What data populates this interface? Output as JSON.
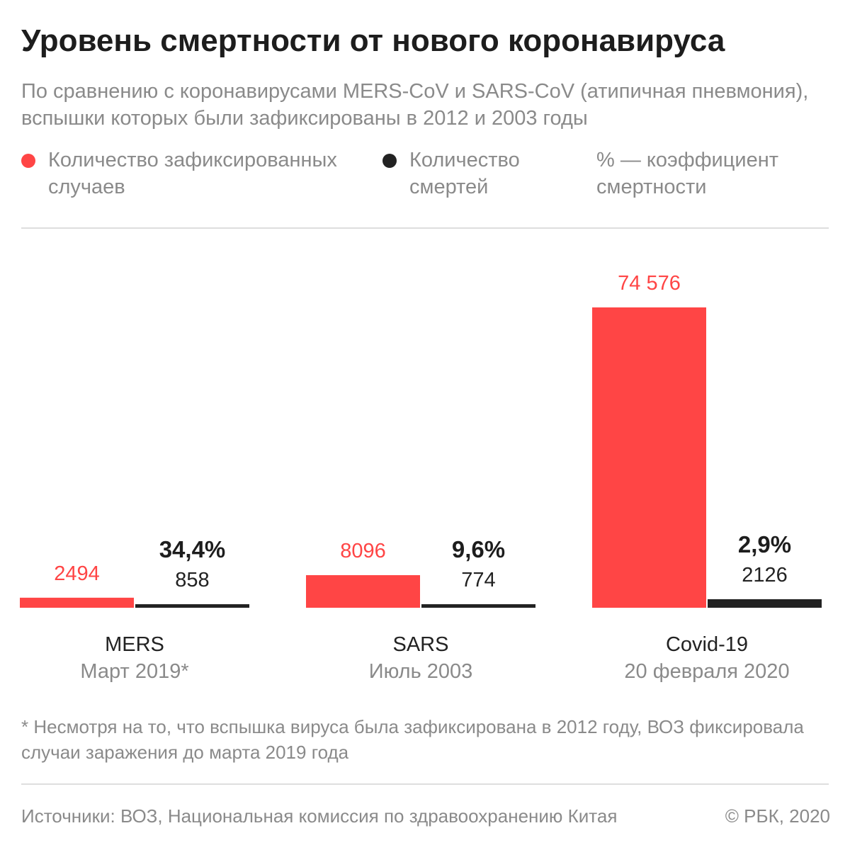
{
  "title": "Уровень смертности от нового коронавируса",
  "subtitle": "По сравнению с коронавирусами MERS-CoV и SARS-CoV (атипичная пневмония), вспышки которых были зафиксированы в 2012 и 2003 годы",
  "legend": {
    "cases": {
      "label": "Количество зафиксированных случаев",
      "color": "#ff4545"
    },
    "deaths": {
      "label": "Количество смертей",
      "color": "#222222"
    },
    "rate": {
      "label": "% — коэффициент смертности"
    }
  },
  "footnote": "* Несмотря на то, что вспышка вируса была зафиксирована в 2012 году, ВОЗ фиксировала случаи заражения до марта 2019 года",
  "sources": "Источники: ВОЗ, Национальная комиссия по здравоохранению Китая",
  "copyright": "© РБК, 2020",
  "chart_data": {
    "type": "bar",
    "title": "Уровень смертности от нового коронавируса",
    "categories": [
      "MERS",
      "SARS",
      "Covid-19"
    ],
    "category_dates": [
      "Март 2019*",
      "Июль 2003",
      "20 февраля 2020"
    ],
    "series": [
      {
        "name": "Количество зафиксированных случаев",
        "color": "#ff4545",
        "values": [
          2494,
          8096,
          74576
        ],
        "labels": [
          "2494",
          "8096",
          "74 576"
        ]
      },
      {
        "name": "Количество смертей",
        "color": "#222222",
        "values": [
          858,
          774,
          2126
        ],
        "labels": [
          "858",
          "774",
          "2126"
        ]
      }
    ],
    "mortality_rate_labels": [
      "34,4%",
      "9,6%",
      "2,9%"
    ],
    "mortality_rate_values": [
      34.4,
      9.6,
      2.9
    ],
    "xlabel": "",
    "ylabel": "",
    "ylim": [
      0,
      74576
    ],
    "grid": false
  }
}
